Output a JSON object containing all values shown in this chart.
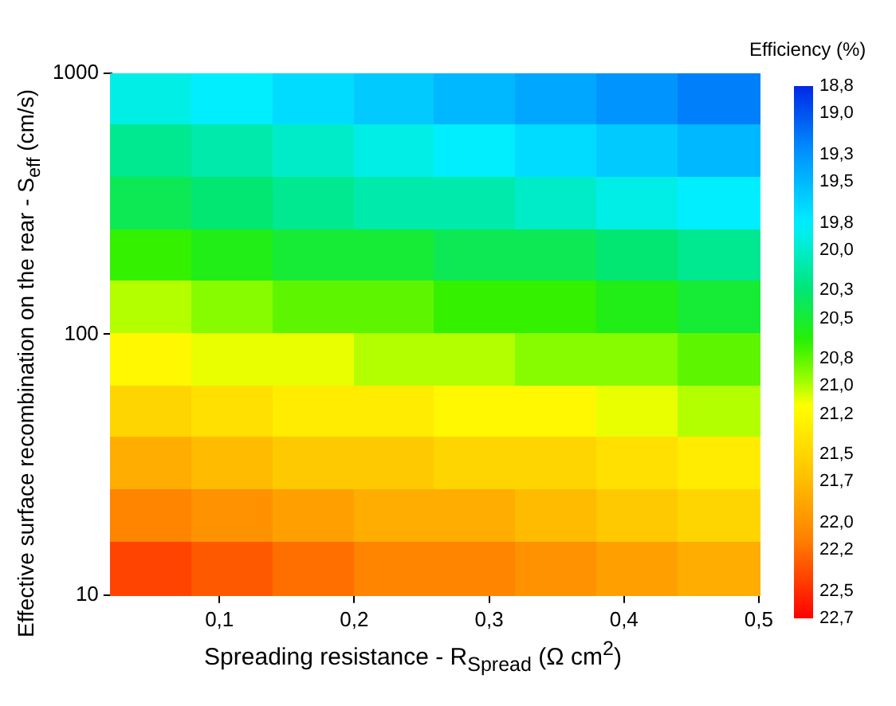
{
  "chart_data": {
    "type": "heatmap",
    "xlabel": "Spreading resistance - R$_{Spread}$ (Ω cm$^{2}$)",
    "ylabel": "Effective surface recombination on the rear - S$_{eff}$ (cm/s)",
    "clabel": "Efficiency (%)",
    "x": [
      0.05,
      0.11,
      0.17,
      0.23,
      0.29,
      0.35,
      0.41,
      0.47
    ],
    "y": [
      794,
      501,
      316,
      200,
      126,
      79,
      50,
      32,
      20,
      12.6
    ],
    "cells": [
      [
        19.9,
        19.8,
        19.7,
        19.6,
        19.5,
        19.4,
        19.3,
        19.2
      ],
      [
        20.2,
        20.1,
        20.0,
        19.9,
        19.8,
        19.7,
        19.6,
        19.5
      ],
      [
        20.4,
        20.3,
        20.2,
        20.1,
        20.1,
        20.0,
        19.9,
        19.8
      ],
      [
        20.7,
        20.6,
        20.5,
        20.5,
        20.4,
        20.4,
        20.3,
        20.2
      ],
      [
        21.0,
        20.9,
        20.8,
        20.8,
        20.7,
        20.7,
        20.6,
        20.5
      ],
      [
        21.2,
        21.1,
        21.1,
        21.0,
        21.0,
        20.9,
        20.9,
        20.8
      ],
      [
        21.5,
        21.4,
        21.3,
        21.3,
        21.2,
        21.2,
        21.1,
        21.0
      ],
      [
        21.8,
        21.7,
        21.6,
        21.6,
        21.5,
        21.5,
        21.4,
        21.3
      ],
      [
        22.1,
        22.0,
        21.9,
        21.8,
        21.8,
        21.7,
        21.6,
        21.5
      ],
      [
        22.4,
        22.3,
        22.2,
        22.1,
        22.1,
        22.0,
        21.9,
        21.8
      ]
    ],
    "clim": [
      18.8,
      22.7
    ],
    "cticks": [
      {
        "value": 18.8,
        "label": "18,8"
      },
      {
        "value": 19.0,
        "label": "19,0"
      },
      {
        "value": 19.3,
        "label": "19,3"
      },
      {
        "value": 19.5,
        "label": "19,5"
      },
      {
        "value": 19.8,
        "label": "19,8"
      },
      {
        "value": 20.0,
        "label": "20,0"
      },
      {
        "value": 20.3,
        "label": "20,3"
      },
      {
        "value": 20.5,
        "label": "20,5"
      },
      {
        "value": 20.8,
        "label": "20,8"
      },
      {
        "value": 21.0,
        "label": "21,0"
      },
      {
        "value": 21.2,
        "label": "21,2"
      },
      {
        "value": 21.5,
        "label": "21,5"
      },
      {
        "value": 21.7,
        "label": "21,7"
      },
      {
        "value": 22.0,
        "label": "22,0"
      },
      {
        "value": 22.2,
        "label": "22,2"
      },
      {
        "value": 22.5,
        "label": "22,5"
      },
      {
        "value": 22.7,
        "label": "22,7"
      }
    ],
    "xlim": [
      0.02,
      0.5
    ],
    "xticks": [
      {
        "value": 0.1,
        "label": "0,1"
      },
      {
        "value": 0.2,
        "label": "0,2"
      },
      {
        "value": 0.3,
        "label": "0,3"
      },
      {
        "value": 0.4,
        "label": "0,4"
      },
      {
        "value": 0.5,
        "label": "0,5"
      }
    ],
    "ylim": [
      10,
      1000
    ],
    "yticks": [
      10,
      100,
      1000
    ],
    "log": "y",
    "grid": false
  }
}
